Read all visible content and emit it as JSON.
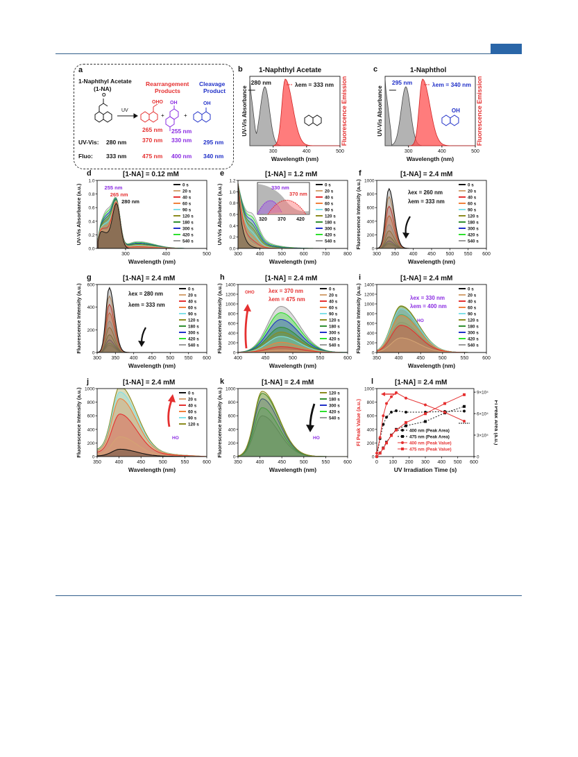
{
  "panels": {
    "a": {
      "label": "a",
      "title": "1-Naphthyl Acetate",
      "title2": "(1-NA)",
      "rearr": "Rearrangement",
      "rearr2": "Products",
      "cleav": "Cleavage",
      "cleav2": "Product",
      "uv": "UV",
      "uvvis": "UV-Vis:",
      "fluo": "Fluo:",
      "na_uv": "280 nm",
      "na_fl": "333 nm",
      "p1_a": "265 nm",
      "p1_b": "370 nm",
      "p1_fl": "475 nm",
      "p2_a": "255 nm",
      "p2_b": "330 nm",
      "p2_fl": "400 nm",
      "p3_uv": "295 nm",
      "p3_fl": "340 nm",
      "oh1": "OHO",
      "oh2": "OH",
      "oh3": "OH",
      "ac": "O"
    },
    "b": {
      "label": "b",
      "title": "1-Naphthyl Acetate",
      "xlabel": "Wavelength (nm)",
      "ylabel": "UV-Vis Absorbance",
      "y2label": "Fluorescence Emission",
      "ann1": "280 nm",
      "ann2": "λem = 333 nm",
      "ticks": [
        "300",
        "400",
        "500"
      ]
    },
    "c": {
      "label": "c",
      "title": "1-Naphthol",
      "xlabel": "Wavelength (nm)",
      "ylabel": "UV-Vis Absorbance",
      "y2label": "Fluorescence Emission",
      "ann1": "295 nm",
      "ann2": "λem = 340 nm",
      "ticks": [
        "300",
        "400",
        "500"
      ],
      "oh": "OH"
    },
    "d": {
      "label": "d",
      "title": "[1-NA] = 0.12 mM",
      "xlabel": "Wavelength (nm)",
      "ylabel": "UV-Vis Absorbance (a.u.)",
      "ann1": "255 nm",
      "ann2": "265 nm",
      "ann3": "280 nm",
      "xticks": [
        "300",
        "400",
        "500"
      ],
      "yticks": [
        "0.0",
        "0.2",
        "0.4",
        "0.6",
        "0.8",
        "1.0"
      ]
    },
    "e": {
      "label": "e",
      "title": "[1-NA] = 1.2 mM",
      "xlabel": "Wavelength (nm)",
      "ylabel": "UV-Vis Absorbance (a.u.)",
      "ann1": "330 nm",
      "ann2": "370 nm",
      "inset_ticks": [
        "320",
        "370",
        "420"
      ],
      "xticks": [
        "300",
        "400",
        "500",
        "600",
        "700",
        "800"
      ],
      "yticks": [
        "0.0",
        "0.2",
        "0.4",
        "0.6",
        "0.8",
        "1.0",
        "1.2"
      ]
    },
    "f": {
      "label": "f",
      "title": "[1-NA] = 2.4 mM",
      "xlabel": "Wavelength (nm)",
      "ylabel": "Fluorescence Intensity (a.u.)",
      "ann1": "λex = 260 nm",
      "ann2": "λem = 333 nm",
      "xticks": [
        "300",
        "350",
        "400",
        "450",
        "500",
        "550",
        "600"
      ],
      "yticks": [
        "0",
        "200",
        "400",
        "600",
        "800",
        "1000"
      ]
    },
    "g": {
      "label": "g",
      "title": "[1-NA] = 2.4 mM",
      "xlabel": "Wavelength (nm)",
      "ylabel": "Fluorescence Intensity (a.u.)",
      "ann1": "λex = 280 nm",
      "ann2": "λem = 333 nm",
      "xticks": [
        "300",
        "350",
        "400",
        "450",
        "500",
        "550",
        "600"
      ],
      "yticks": [
        "0",
        "200",
        "400",
        "600"
      ]
    },
    "h": {
      "label": "h",
      "title": "[1-NA] = 2.4 mM",
      "xlabel": "Wavelength (nm)",
      "ylabel": "Fluorescence Intensity (a.u.)",
      "ann1": "λex = 370 nm",
      "ann2": "λem = 475 nm",
      "oho": "OHO",
      "xticks": [
        "400",
        "450",
        "500",
        "550",
        "600"
      ],
      "yticks": [
        "0",
        "200",
        "400",
        "600",
        "800",
        "1000",
        "1200",
        "1400"
      ]
    },
    "i": {
      "label": "i",
      "title": "[1-NA] = 2.4 mM",
      "xlabel": "Wavelength (nm)",
      "ylabel": "Fluorescence Intensity (a.u.)",
      "ann1": "λex = 330 nm",
      "ann2": "λem = 400 nm",
      "ho": "HO",
      "xticks": [
        "350",
        "400",
        "450",
        "500",
        "550",
        "600"
      ],
      "yticks": [
        "0",
        "200",
        "400",
        "600",
        "800",
        "1000",
        "1200",
        "1400"
      ]
    },
    "j": {
      "label": "j",
      "title": "[1-NA] = 2.4 mM",
      "xlabel": "Wavelength (nm)",
      "ylabel": "Fluorescence Intensity (a.u.)",
      "ho": "HO",
      "xticks": [
        "350",
        "400",
        "450",
        "500",
        "550",
        "600"
      ],
      "yticks": [
        "0",
        "200",
        "400",
        "600",
        "800",
        "1000"
      ]
    },
    "k": {
      "label": "k",
      "title": "[1-NA] = 2.4 mM",
      "xlabel": "Wavelength (nm)",
      "ylabel": "Fluorescence Intensity (a.u.)",
      "ho": "HO",
      "xticks": [
        "350",
        "400",
        "450",
        "500",
        "550",
        "600"
      ],
      "yticks": [
        "0",
        "200",
        "400",
        "600",
        "800",
        "1000"
      ]
    },
    "l": {
      "label": "l",
      "title": "[1-NA] = 2.4 mM",
      "xlabel": "UV Irradiation Time (s)",
      "ylabel": "Fl Peak Value (a.u.)",
      "y2label": "Fl Peak Area (a.u.)",
      "xticks": [
        "0",
        "100",
        "200",
        "300",
        "400",
        "500",
        "600"
      ],
      "yticks": [
        "0",
        "200",
        "400",
        "600",
        "800",
        "1000"
      ],
      "y2ticks": [
        "0",
        "3×10⁴",
        "6×10⁴",
        "9×10⁴"
      ]
    }
  },
  "legends": {
    "ten": [
      "0 s",
      "20 s",
      "40 s",
      "60 s",
      "90 s",
      "120 s",
      "180 s",
      "300 s",
      "420 s",
      "540 s"
    ],
    "j": [
      "0 s",
      "20 s",
      "40 s",
      "60 s",
      "90 s",
      "120 s"
    ],
    "k": [
      "120 s",
      "180 s",
      "300 s",
      "420 s",
      "540 s"
    ],
    "l": [
      "400 nm (Peak Area)",
      "475 nm (Peak Area)",
      "400 nm (Peak Value)",
      "475 nm (Peak Value)"
    ]
  },
  "colors": {
    "series": [
      "#111111",
      "#d4a373",
      "#e53030",
      "#f0803c",
      "#7fe0e8",
      "#8b8b1e",
      "#2f8f2f",
      "#1f2fc8",
      "#2ee02e",
      "#9a9a9a"
    ],
    "accent_red": "#e53030",
    "accent_purple": "#8a2be2",
    "accent_blue": "#2030c8",
    "uv_gray": "#999999",
    "em_red": "#ff6060"
  },
  "chart_data": [
    {
      "type": "area",
      "panel": "b",
      "title": "1-Naphthyl Acetate",
      "xlabel": "Wavelength (nm)",
      "ylabel": "UV-Vis Absorbance",
      "xlim": [
        230,
        500
      ],
      "series": [
        {
          "name": "UV-Vis Absorbance",
          "x": [
            230,
            250,
            260,
            270,
            280,
            290,
            300,
            320,
            350,
            400,
            500
          ],
          "values": [
            1.0,
            0.2,
            0.35,
            0.6,
            0.85,
            0.55,
            0.2,
            0.03,
            0.0,
            0.0,
            0.0
          ]
        },
        {
          "name": "Fluorescence Emission",
          "x": [
            300,
            315,
            325,
            333,
            345,
            360,
            380,
            400,
            430,
            460,
            500
          ],
          "values": [
            0.0,
            0.15,
            0.65,
            1.0,
            0.88,
            0.55,
            0.22,
            0.08,
            0.02,
            0.0,
            0.0
          ]
        }
      ]
    },
    {
      "type": "area",
      "panel": "c",
      "title": "1-Naphthol",
      "xlabel": "Wavelength (nm)",
      "ylabel": "UV-Vis Absorbance",
      "xlim": [
        230,
        500
      ],
      "series": [
        {
          "name": "UV-Vis Absorbance",
          "x": [
            230,
            250,
            260,
            275,
            285,
            295,
            305,
            320,
            340,
            400,
            500
          ],
          "values": [
            1.0,
            0.15,
            0.3,
            0.6,
            0.85,
            0.8,
            0.5,
            0.15,
            0.02,
            0.0,
            0.0
          ]
        },
        {
          "name": "Fluorescence Emission",
          "x": [
            310,
            325,
            335,
            340,
            350,
            365,
            385,
            410,
            440,
            470,
            500
          ],
          "values": [
            0.0,
            0.2,
            0.75,
            1.0,
            0.85,
            0.55,
            0.25,
            0.08,
            0.02,
            0.0,
            0.0
          ]
        }
      ]
    },
    {
      "type": "area",
      "panel": "d",
      "xlim": [
        230,
        500
      ],
      "ylim": [
        0,
        1.0
      ],
      "note": "absorbance spectra over irradiation time"
    },
    {
      "type": "area",
      "panel": "e",
      "xlim": [
        300,
        800
      ],
      "ylim": [
        0,
        1.2
      ]
    },
    {
      "type": "area",
      "panel": "f",
      "xlim": [
        300,
        600
      ],
      "ylim": [
        0,
        1000
      ],
      "peaks": [
        880,
        760,
        620,
        480,
        350,
        260,
        170,
        110,
        80,
        60
      ]
    },
    {
      "type": "area",
      "panel": "g",
      "xlim": [
        300,
        600
      ],
      "ylim": [
        0,
        650
      ],
      "peaks": [
        620,
        540,
        460,
        380,
        300,
        240,
        170,
        120,
        90,
        70
      ]
    },
    {
      "type": "area",
      "panel": "h",
      "xlim": [
        370,
        600
      ],
      "ylim": [
        0,
        1400
      ],
      "peaks": [
        0,
        50,
        120,
        210,
        330,
        420,
        520,
        680,
        820,
        950
      ]
    },
    {
      "type": "area",
      "panel": "i",
      "xlim": [
        350,
        600
      ],
      "ylim": [
        0,
        1400
      ],
      "peaks": [
        0,
        300,
        560,
        760,
        900,
        960,
        950,
        900,
        780,
        620
      ]
    },
    {
      "type": "area",
      "panel": "j",
      "xlim": [
        350,
        600
      ],
      "ylim": [
        0,
        1000
      ],
      "peaks": [
        100,
        270,
        580,
        790,
        880,
        960
      ]
    },
    {
      "type": "area",
      "panel": "k",
      "xlim": [
        350,
        600
      ],
      "ylim": [
        0,
        1000
      ],
      "peaks": [
        960,
        930,
        850,
        720,
        600
      ]
    },
    {
      "type": "line",
      "panel": "l",
      "xlabel": "UV Irradiation Time (s)",
      "ylabel": "Fl Peak Value (a.u.)",
      "xlim": [
        0,
        600
      ],
      "ylim": [
        0,
        1000
      ],
      "x": [
        0,
        20,
        40,
        60,
        90,
        120,
        180,
        300,
        420,
        540
      ],
      "series": [
        {
          "name": "400 nm (Peak Area)",
          "axis": "right",
          "values": [
            0,
            25000,
            45000,
            55000,
            62000,
            64000,
            62000,
            62000,
            63000,
            63500
          ]
        },
        {
          "name": "475 nm (Peak Area)",
          "axis": "right",
          "values": [
            0,
            5000,
            12000,
            20000,
            30000,
            38000,
            43000,
            49000,
            61000,
            70000
          ]
        },
        {
          "name": "400 nm (Peak Value)",
          "axis": "left",
          "values": [
            50,
            280,
            600,
            780,
            880,
            940,
            860,
            760,
            650,
            520
          ]
        },
        {
          "name": "475 nm (Peak Value)",
          "axis": "left",
          "values": [
            0,
            50,
            120,
            200,
            310,
            390,
            500,
            630,
            780,
            910
          ]
        }
      ]
    }
  ]
}
